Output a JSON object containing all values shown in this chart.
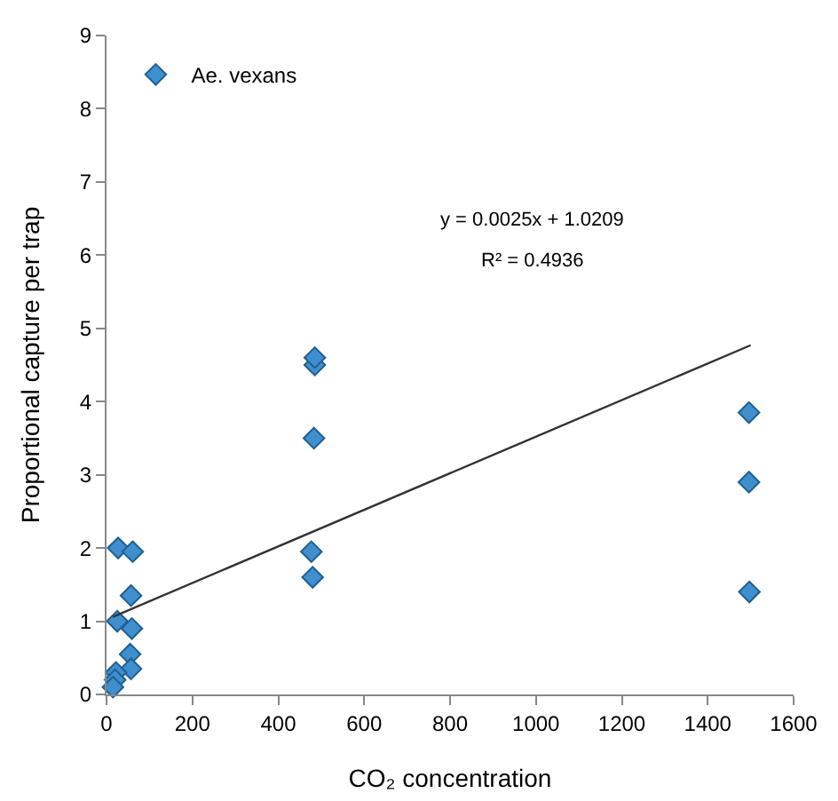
{
  "chart_data": {
    "type": "scatter",
    "xlabel": "CO₂ concentration",
    "ylabel": "Proportional capture per trap",
    "xlim": [
      0,
      1600
    ],
    "xticks": [
      0,
      200,
      400,
      600,
      800,
      1000,
      1200,
      1400,
      1600
    ],
    "ylim": [
      0,
      9
    ],
    "yticks": [
      0,
      1,
      2,
      3,
      4,
      5,
      6,
      7,
      8,
      9
    ],
    "grid": false,
    "legend": "top left",
    "marker": "diamond",
    "series": [
      {
        "name": "Ae. vexans",
        "color": "#3f8fcf",
        "x": [
          27,
          61,
          57,
          25,
          59,
          55,
          57,
          22,
          20,
          15,
          477,
          480,
          483,
          485,
          485,
          1496,
          1496,
          1497
        ],
        "values": [
          2.0,
          1.95,
          1.35,
          1.0,
          0.9,
          0.55,
          0.35,
          0.3,
          0.2,
          0.1,
          1.95,
          1.6,
          3.5,
          4.5,
          4.6,
          3.85,
          2.9,
          1.4
        ]
      },
      {
        "type": "line",
        "color": "#333333",
        "marker": "none",
        "x": [
          15,
          1500
        ],
        "values": [
          1.06,
          4.77
        ]
      }
    ],
    "annotations": [
      "y = 0.0025x + 1.0209",
      "R² = 0.4936"
    ]
  }
}
